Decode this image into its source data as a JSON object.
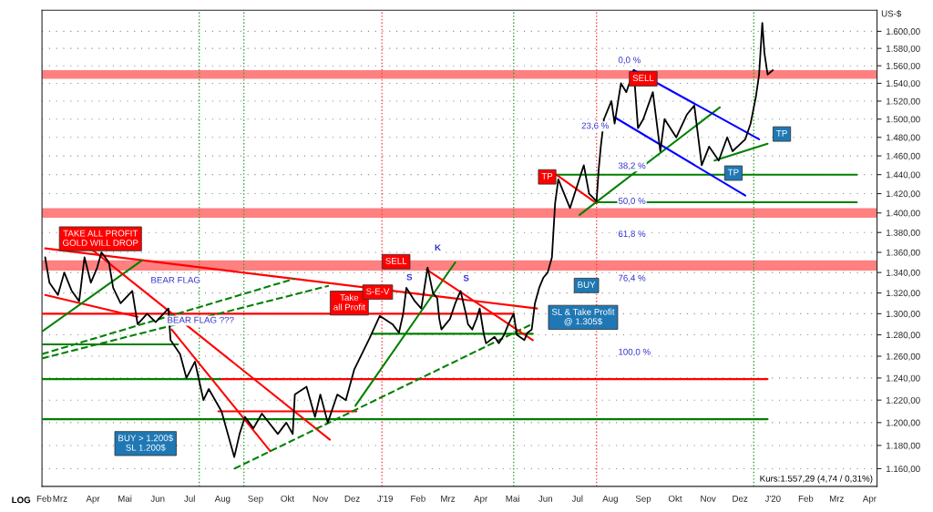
{
  "chart_data": {
    "type": "line",
    "ylabel": "US-$",
    "log": "y",
    "grid": "y",
    "xlim": [
      "2018-02-12",
      "2020-04-08"
    ],
    "xticks": [
      {
        "value": "2018-02-14",
        "label": "Feb"
      },
      {
        "value": "2018-03-01",
        "label": "Mrz"
      },
      {
        "value": "2018-04-01",
        "label": "Apr"
      },
      {
        "value": "2018-05-01",
        "label": "Mai"
      },
      {
        "value": "2018-06-01",
        "label": "Jun"
      },
      {
        "value": "2018-07-01",
        "label": "Jul"
      },
      {
        "value": "2018-08-01",
        "label": "Aug"
      },
      {
        "value": "2018-09-01",
        "label": "Sep"
      },
      {
        "value": "2018-10-01",
        "label": "Okt"
      },
      {
        "value": "2018-11-01",
        "label": "Nov"
      },
      {
        "value": "2018-12-01",
        "label": "Dez"
      },
      {
        "value": "2019-01-01",
        "label": "J'19"
      },
      {
        "value": "2019-02-01",
        "label": "Feb"
      },
      {
        "value": "2019-03-01",
        "label": "Mrz"
      },
      {
        "value": "2019-04-01",
        "label": "Apr"
      },
      {
        "value": "2019-05-01",
        "label": "Mai"
      },
      {
        "value": "2019-06-01",
        "label": "Jun"
      },
      {
        "value": "2019-07-01",
        "label": "Jul"
      },
      {
        "value": "2019-08-01",
        "label": "Aug"
      },
      {
        "value": "2019-09-01",
        "label": "Sep"
      },
      {
        "value": "2019-10-01",
        "label": "Okt"
      },
      {
        "value": "2019-11-01",
        "label": "Nov"
      },
      {
        "value": "2019-12-01",
        "label": "Dez"
      },
      {
        "value": "2020-01-01",
        "label": "J'20"
      },
      {
        "value": "2020-02-01",
        "label": "Feb"
      },
      {
        "value": "2020-03-01",
        "label": "Mrz"
      },
      {
        "value": "2020-04-01",
        "label": "Apr"
      }
    ],
    "ylim": [
      1145,
      1625
    ],
    "yticks": [
      {
        "value": 1160,
        "label": "1.160,00"
      },
      {
        "value": 1180,
        "label": "1.180,00"
      },
      {
        "value": 1200,
        "label": "1.200,00"
      },
      {
        "value": 1220,
        "label": "1.220,00"
      },
      {
        "value": 1240,
        "label": "1.240,00"
      },
      {
        "value": 1260,
        "label": "1.260,00"
      },
      {
        "value": 1280,
        "label": "1.280,00"
      },
      {
        "value": 1300,
        "label": "1.300,00"
      },
      {
        "value": 1320,
        "label": "1.320,00"
      },
      {
        "value": 1340,
        "label": "1.340,00"
      },
      {
        "value": 1360,
        "label": "1.360,00"
      },
      {
        "value": 1380,
        "label": "1.380,00"
      },
      {
        "value": 1400,
        "label": "1.400,00"
      },
      {
        "value": 1420,
        "label": "1.420,00"
      },
      {
        "value": 1440,
        "label": "1.440,00"
      },
      {
        "value": 1460,
        "label": "1.460,00"
      },
      {
        "value": 1480,
        "label": "1.480,00"
      },
      {
        "value": 1500,
        "label": "1.500,00"
      },
      {
        "value": 1520,
        "label": "1.520,00"
      },
      {
        "value": 1540,
        "label": "1.540,00"
      },
      {
        "value": 1560,
        "label": "1.560,00"
      },
      {
        "value": 1580,
        "label": "1.580,00"
      },
      {
        "value": 1600,
        "label": "1.600,00"
      }
    ],
    "bands": [
      {
        "axis": "y",
        "from": 1342,
        "to": 1352,
        "color": "#ff8080"
      },
      {
        "axis": "y",
        "from": 1395,
        "to": 1405,
        "color": "#ff8080"
      },
      {
        "axis": "y",
        "from": 1545,
        "to": 1555,
        "color": "#ff8080"
      }
    ],
    "ref_lines": [
      {
        "axis": "x",
        "value": "2018-07-10",
        "color": "#2ca02c",
        "line_style": "dotted"
      },
      {
        "axis": "x",
        "value": "2018-08-21",
        "color": "#2ca02c",
        "line_style": "dotted"
      },
      {
        "axis": "x",
        "value": "2018-12-29",
        "color": "#ff4040",
        "line_style": "dotted"
      },
      {
        "axis": "x",
        "value": "2019-05-02",
        "color": "#2ca02c",
        "line_style": "dotted"
      },
      {
        "axis": "x",
        "value": "2019-07-19",
        "color": "#ff4040",
        "line_style": "dotted"
      },
      {
        "axis": "x",
        "value": "2019-12-14",
        "color": "#2ca02c",
        "line_style": "dotted"
      }
    ],
    "series": [
      {
        "color": "#000000",
        "line_style": "solid",
        "x": [
          "2018-02-15",
          "2018-02-19",
          "2018-02-27",
          "2018-03-05",
          "2018-03-12",
          "2018-03-19",
          "2018-03-24",
          "2018-03-30",
          "2018-04-05",
          "2018-04-09",
          "2018-04-16",
          "2018-04-20",
          "2018-04-27",
          "2018-05-08",
          "2018-05-13",
          "2018-05-22",
          "2018-05-30",
          "2018-06-11",
          "2018-06-13",
          "2018-06-22",
          "2018-06-28",
          "2018-07-06",
          "2018-07-14",
          "2018-07-19",
          "2018-07-31",
          "2018-08-12",
          "2018-08-17",
          "2018-08-22",
          "2018-08-30",
          "2018-09-07",
          "2018-09-22",
          "2018-09-30",
          "2018-10-06",
          "2018-10-08",
          "2018-10-19",
          "2018-10-27",
          "2018-11-01",
          "2018-11-08",
          "2018-11-17",
          "2018-11-25",
          "2018-12-03",
          "2018-12-17",
          "2018-12-27",
          "2019-01-08",
          "2019-01-14",
          "2019-01-18",
          "2019-01-21",
          "2019-01-29",
          "2019-02-04",
          "2019-02-07",
          "2019-02-10",
          "2019-02-15",
          "2019-02-19",
          "2019-02-21",
          "2019-02-23",
          "2019-03-03",
          "2019-03-08",
          "2019-03-13",
          "2019-03-18",
          "2019-03-20",
          "2019-03-24",
          "2019-03-28",
          "2019-03-31",
          "2019-04-04",
          "2019-04-06",
          "2019-04-14",
          "2019-04-18",
          "2019-04-23",
          "2019-04-27",
          "2019-05-02",
          "2019-05-05",
          "2019-05-12",
          "2019-05-15",
          "2019-05-19",
          "2019-05-22",
          "2019-05-26",
          "2019-05-30",
          "2019-06-03",
          "2019-06-07",
          "2019-06-10",
          "2019-06-13",
          "2019-06-24",
          "2019-07-07",
          "2019-07-12",
          "2019-07-19",
          "2019-07-21",
          "2019-07-23",
          "2019-07-26",
          "2019-08-02",
          "2019-08-05",
          "2019-08-11",
          "2019-08-16",
          "2019-08-23",
          "2019-08-27",
          "2019-09-01",
          "2019-09-10",
          "2019-09-17",
          "2019-09-21",
          "2019-10-02",
          "2019-10-12",
          "2019-10-19",
          "2019-10-26",
          "2019-11-02",
          "2019-11-11",
          "2019-11-19",
          "2019-11-24",
          "2019-12-06",
          "2019-12-11",
          "2019-12-16",
          "2019-12-19",
          "2019-12-22",
          "2019-12-24",
          "2019-12-27",
          "2020-01-01"
        ],
        "values": [
          1355,
          1330,
          1318,
          1340,
          1322,
          1312,
          1355,
          1330,
          1345,
          1360,
          1350,
          1325,
          1310,
          1322,
          1290,
          1300,
          1292,
          1305,
          1275,
          1262,
          1240,
          1255,
          1220,
          1230,
          1210,
          1170,
          1190,
          1205,
          1195,
          1208,
          1190,
          1200,
          1190,
          1225,
          1232,
          1205,
          1225,
          1200,
          1225,
          1220,
          1248,
          1276,
          1298,
          1290,
          1282,
          1300,
          1325,
          1312,
          1305,
          1325,
          1345,
          1320,
          1315,
          1295,
          1285,
          1295,
          1310,
          1322,
          1300,
          1290,
          1285,
          1295,
          1305,
          1280,
          1272,
          1278,
          1272,
          1280,
          1290,
          1300,
          1280,
          1275,
          1282,
          1285,
          1310,
          1325,
          1335,
          1340,
          1355,
          1410,
          1435,
          1405,
          1450,
          1420,
          1412,
          1445,
          1470,
          1500,
          1520,
          1495,
          1540,
          1530,
          1555,
          1490,
          1500,
          1530,
          1465,
          1500,
          1480,
          1505,
          1515,
          1450,
          1470,
          1455,
          1480,
          1465,
          1478,
          1495,
          1525,
          1550,
          1610,
          1575,
          1550,
          1555
        ]
      },
      {
        "type": "line",
        "color": "#ff0000",
        "line_style": "solid",
        "x": [
          "2018-02-12",
          "2019-05-02"
        ],
        "values": [
          1300,
          1300
        ]
      },
      {
        "type": "line",
        "color": "#008000",
        "line_style": "solid",
        "x": [
          "2018-02-12",
          "2018-06-20"
        ],
        "values": [
          1271,
          1271
        ]
      },
      {
        "type": "line",
        "color": "#008000",
        "line_style": "solid",
        "x": [
          "2018-02-12",
          "2018-07-31"
        ],
        "values": [
          1239,
          1239
        ]
      },
      {
        "type": "line",
        "color": "#ff0000",
        "line_style": "solid",
        "x": [
          "2018-07-31",
          "2019-12-27"
        ],
        "values": [
          1239,
          1239
        ]
      },
      {
        "type": "line",
        "color": "#008000",
        "line_style": "solid",
        "x": [
          "2018-02-12",
          "2019-12-27"
        ],
        "values": [
          1203,
          1203
        ]
      },
      {
        "type": "line",
        "color": "#ff0000",
        "line_style": "solid",
        "x": [
          "2018-07-28",
          "2018-12-05"
        ],
        "values": [
          1210,
          1210
        ]
      },
      {
        "type": "line",
        "color": "#008000",
        "line_style": "solid",
        "x": [
          "2018-12-20",
          "2019-05-20"
        ],
        "values": [
          1281,
          1281
        ]
      },
      {
        "type": "line",
        "color": "#008000",
        "line_style": "solid",
        "x": [
          "2019-06-11",
          "2020-03-20"
        ],
        "values": [
          1440,
          1440
        ]
      },
      {
        "type": "line",
        "color": "#008000",
        "line_style": "solid",
        "x": [
          "2019-07-19",
          "2020-03-20"
        ],
        "values": [
          1411,
          1411
        ]
      },
      {
        "type": "line",
        "color": "#ff0000",
        "line_style": "solid",
        "x": [
          "2018-02-15",
          "2019-05-24"
        ],
        "values": [
          1364,
          1305
        ]
      },
      {
        "type": "line",
        "color": "#ff0000",
        "line_style": "solid",
        "x": [
          "2018-02-15",
          "2018-05-13"
        ],
        "values": [
          1318,
          1297
        ]
      },
      {
        "type": "line",
        "color": "#008000",
        "line_style": "solid",
        "x": [
          "2018-02-12",
          "2018-05-17"
        ],
        "values": [
          1283,
          1352
        ]
      },
      {
        "type": "line",
        "color": "#ff0000",
        "line_style": "solid",
        "x": [
          "2018-04-01",
          "2018-11-10"
        ],
        "values": [
          1362,
          1185
        ]
      },
      {
        "type": "line",
        "color": "#ff0000",
        "line_style": "solid",
        "x": [
          "2018-06-14",
          "2018-09-15"
        ],
        "values": [
          1285,
          1175
        ]
      },
      {
        "type": "line",
        "color": "#008000",
        "line_style": "dashed",
        "x": [
          "2018-02-12",
          "2018-10-08"
        ],
        "values": [
          1262,
          1334
        ]
      },
      {
        "type": "line",
        "color": "#008000",
        "line_style": "dashed",
        "x": [
          "2018-02-12",
          "2018-11-09"
        ],
        "values": [
          1258,
          1327
        ]
      },
      {
        "type": "line",
        "color": "#008000",
        "line_style": "dashed",
        "x": [
          "2018-08-12",
          "2019-05-19"
        ],
        "values": [
          1160,
          1290
        ]
      },
      {
        "type": "line",
        "color": "#008000",
        "line_style": "solid",
        "x": [
          "2018-12-04",
          "2019-03-08"
        ],
        "values": [
          1215,
          1350
        ]
      },
      {
        "type": "line",
        "color": "#ff0000",
        "line_style": "solid",
        "x": [
          "2019-02-09",
          "2019-05-20"
        ],
        "values": [
          1343,
          1275
        ]
      },
      {
        "type": "line",
        "color": "#ff0000",
        "line_style": "solid",
        "x": [
          "2019-06-11",
          "2019-07-19"
        ],
        "values": [
          1440,
          1410
        ]
      },
      {
        "type": "line",
        "color": "#008000",
        "line_style": "solid",
        "x": [
          "2019-07-03",
          "2019-11-12"
        ],
        "values": [
          1398,
          1513
        ]
      },
      {
        "type": "line",
        "color": "#0000ff",
        "line_style": "solid",
        "x": [
          "2019-08-23",
          "2019-12-19"
        ],
        "values": [
          1555,
          1478
        ]
      },
      {
        "type": "line",
        "color": "#0000ff",
        "line_style": "solid",
        "x": [
          "2019-08-05",
          "2019-12-06"
        ],
        "values": [
          1502,
          1418
        ]
      },
      {
        "type": "line",
        "color": "#008000",
        "line_style": "solid",
        "x": [
          "2019-11-07",
          "2019-12-27"
        ],
        "values": [
          1455,
          1473
        ]
      }
    ],
    "annotations": [
      "LOG",
      "Kurs:1.557,29 (4,74 / 0,31%)",
      "TAKE ALL PROFIT\nGOLD WILL DROP",
      "BUY > 1.200$\nSL 1.200$",
      "SL & Take Profit\n@ 1.305$",
      "BEAR FLAG",
      "BEAR FLAG ???",
      "Take\nall Profit",
      "S-E-V",
      "S",
      "SELL",
      "K",
      "S",
      "BUY",
      "TP",
      "SELL",
      "TP",
      "TP",
      "0,0 %",
      "23,6 %",
      "38,2 %",
      "50,0 %",
      "61,8 %",
      "76,4 %",
      "100,0 %"
    ]
  }
}
